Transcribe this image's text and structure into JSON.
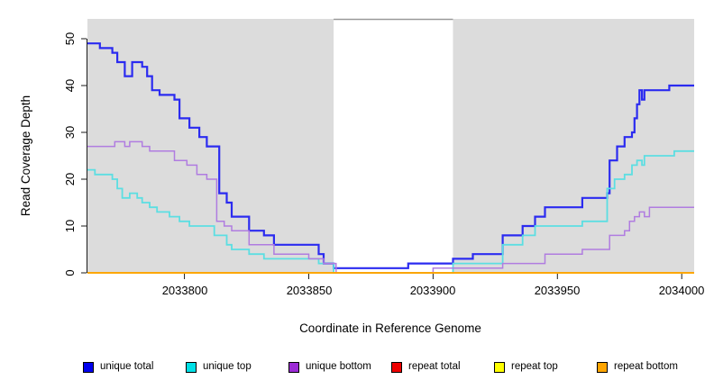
{
  "chart_data": {
    "type": "line",
    "subtype": "step-coverage-plot",
    "xlabel": "Coordinate in Reference Genome",
    "ylabel": "Read Coverage Depth",
    "plot_background": "#DCDCDC",
    "masked_region": {
      "x_start": 2033860,
      "x_end": 2033908,
      "color": "#FFFFFF",
      "top_border_color": "#999999"
    },
    "x_axis": {
      "range": [
        2033761,
        2034005
      ],
      "ticks": [
        2033800,
        2033850,
        2033900,
        2033950,
        2034000
      ],
      "tick_labels": [
        "2033800",
        "2033850",
        "2033900",
        "2033950",
        "2034000"
      ]
    },
    "y_axis": {
      "range": [
        0,
        50
      ],
      "ticks": [
        0,
        10,
        20,
        30,
        40,
        50
      ],
      "tick_labels": [
        "0",
        "10",
        "20",
        "30",
        "40",
        "50"
      ]
    },
    "grid": "off",
    "legend_position": "bottom-horizontal",
    "legend": {
      "items": [
        {
          "label": "unique total",
          "color": "#0000EE"
        },
        {
          "label": "unique top",
          "color": "#00E0E6"
        },
        {
          "label": "unique bottom",
          "color": "#9C2BD6"
        },
        {
          "label": "repeat total",
          "color": "#EE0000"
        },
        {
          "label": "repeat top",
          "color": "#FFFF00"
        },
        {
          "label": "repeat bottom",
          "color": "#FFA500"
        }
      ]
    },
    "series": [
      {
        "name": "unique total",
        "line_color": "#2B2BF0",
        "line_width": 2.2,
        "step_points": [
          [
            2033761,
            49
          ],
          [
            2033766,
            48
          ],
          [
            2033771,
            47
          ],
          [
            2033773,
            45
          ],
          [
            2033776,
            42
          ],
          [
            2033779,
            45
          ],
          [
            2033783,
            44
          ],
          [
            2033785,
            42
          ],
          [
            2033787,
            39
          ],
          [
            2033790,
            38
          ],
          [
            2033796,
            37
          ],
          [
            2033798,
            33
          ],
          [
            2033802,
            31
          ],
          [
            2033806,
            29
          ],
          [
            2033809,
            27
          ],
          [
            2033814,
            17
          ],
          [
            2033817,
            15
          ],
          [
            2033819,
            12
          ],
          [
            2033826,
            9
          ],
          [
            2033832,
            8
          ],
          [
            2033836,
            6
          ],
          [
            2033854,
            4
          ],
          [
            2033856,
            2
          ],
          [
            2033860,
            1
          ],
          [
            2033890,
            2
          ],
          [
            2033908,
            3
          ],
          [
            2033916,
            4
          ],
          [
            2033928,
            8
          ],
          [
            2033936,
            10
          ],
          [
            2033941,
            12
          ],
          [
            2033945,
            14
          ],
          [
            2033960,
            16
          ],
          [
            2033970,
            17
          ],
          [
            2033971,
            24
          ],
          [
            2033974,
            27
          ],
          [
            2033977,
            29
          ],
          [
            2033980,
            30
          ],
          [
            2033981,
            33
          ],
          [
            2033982,
            36
          ],
          [
            2033983,
            39
          ],
          [
            2033984,
            37
          ],
          [
            2033985,
            39
          ],
          [
            2033995,
            40
          ]
        ]
      },
      {
        "name": "unique top",
        "line_color": "#5CDEE2",
        "line_width": 1.8,
        "step_points": [
          [
            2033761,
            22
          ],
          [
            2033764,
            21
          ],
          [
            2033771,
            20
          ],
          [
            2033773,
            18
          ],
          [
            2033775,
            16
          ],
          [
            2033778,
            17
          ],
          [
            2033781,
            16
          ],
          [
            2033783,
            15
          ],
          [
            2033786,
            14
          ],
          [
            2033789,
            13
          ],
          [
            2033794,
            12
          ],
          [
            2033798,
            11
          ],
          [
            2033802,
            10
          ],
          [
            2033812,
            8
          ],
          [
            2033817,
            6
          ],
          [
            2033819,
            5
          ],
          [
            2033826,
            4
          ],
          [
            2033832,
            3
          ],
          [
            2033854,
            2
          ],
          [
            2033860,
            0
          ],
          [
            2033908,
            2
          ],
          [
            2033928,
            6
          ],
          [
            2033936,
            8
          ],
          [
            2033941,
            10
          ],
          [
            2033960,
            11
          ],
          [
            2033970,
            18
          ],
          [
            2033973,
            20
          ],
          [
            2033977,
            21
          ],
          [
            2033980,
            23
          ],
          [
            2033982,
            24
          ],
          [
            2033984,
            23
          ],
          [
            2033985,
            25
          ],
          [
            2033997,
            26
          ]
        ]
      },
      {
        "name": "unique bottom",
        "line_color": "#B07CE0",
        "line_width": 1.5,
        "step_points": [
          [
            2033761,
            27
          ],
          [
            2033772,
            28
          ],
          [
            2033776,
            27
          ],
          [
            2033778,
            28
          ],
          [
            2033783,
            27
          ],
          [
            2033786,
            26
          ],
          [
            2033796,
            24
          ],
          [
            2033801,
            23
          ],
          [
            2033805,
            21
          ],
          [
            2033809,
            20
          ],
          [
            2033813,
            11
          ],
          [
            2033816,
            10
          ],
          [
            2033819,
            9
          ],
          [
            2033826,
            6
          ],
          [
            2033836,
            4
          ],
          [
            2033850,
            3
          ],
          [
            2033856,
            2
          ],
          [
            2033861,
            0
          ],
          [
            2033900,
            1
          ],
          [
            2033928,
            2
          ],
          [
            2033945,
            4
          ],
          [
            2033960,
            5
          ],
          [
            2033971,
            8
          ],
          [
            2033977,
            9
          ],
          [
            2033979,
            11
          ],
          [
            2033981,
            12
          ],
          [
            2033983,
            13
          ],
          [
            2033985,
            12
          ],
          [
            2033987,
            14
          ]
        ]
      },
      {
        "name": "repeat total",
        "line_color": "#DD0000",
        "line_width": 1.5,
        "step_points": [
          [
            2033761,
            0
          ]
        ]
      },
      {
        "name": "repeat top",
        "line_color": "#F8F800",
        "line_width": 1.5,
        "step_points": [
          [
            2033761,
            0
          ]
        ]
      },
      {
        "name": "repeat bottom",
        "line_color": "#FFA500",
        "line_width": 1.8,
        "step_points": [
          [
            2033761,
            0
          ]
        ]
      }
    ]
  }
}
